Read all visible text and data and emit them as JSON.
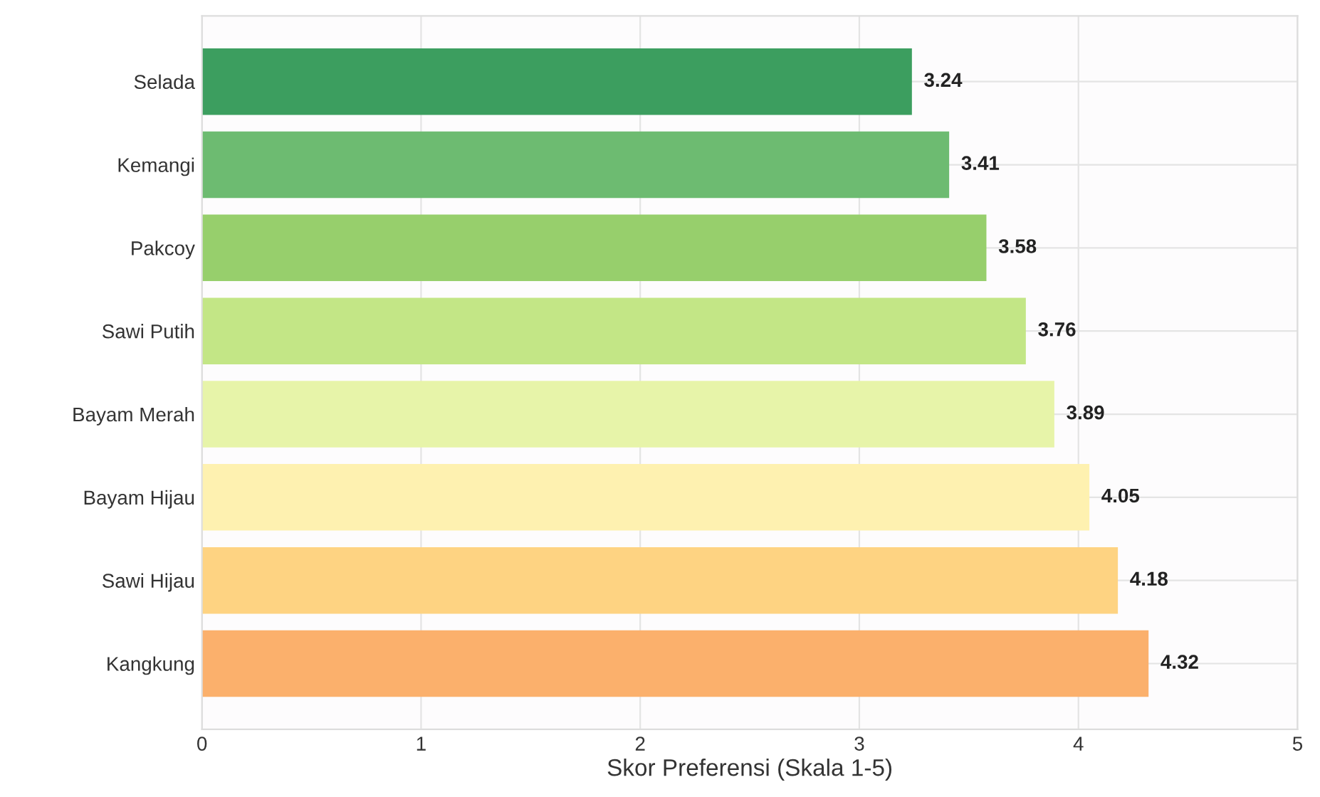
{
  "chart_data": {
    "type": "bar",
    "orientation": "horizontal",
    "xlabel": "Skor Preferensi (Skala 1-5)",
    "categories": [
      "Selada",
      "Kemangi",
      "Pakcoy",
      "Sawi Putih",
      "Bayam Merah",
      "Bayam Hijau",
      "Sawi Hijau",
      "Kangkung"
    ],
    "values": [
      3.24,
      3.41,
      3.58,
      3.76,
      3.89,
      4.05,
      4.18,
      4.32
    ],
    "colors": [
      "#3c9e5f",
      "#6dbb71",
      "#97cf6c",
      "#c3e686",
      "#e7f4a9",
      "#fef1b0",
      "#fed382",
      "#fbb06c"
    ],
    "xlim": [
      0,
      5
    ],
    "xticks": [
      0,
      1,
      2,
      3,
      4,
      5
    ],
    "grid": true,
    "data_labels": true
  }
}
